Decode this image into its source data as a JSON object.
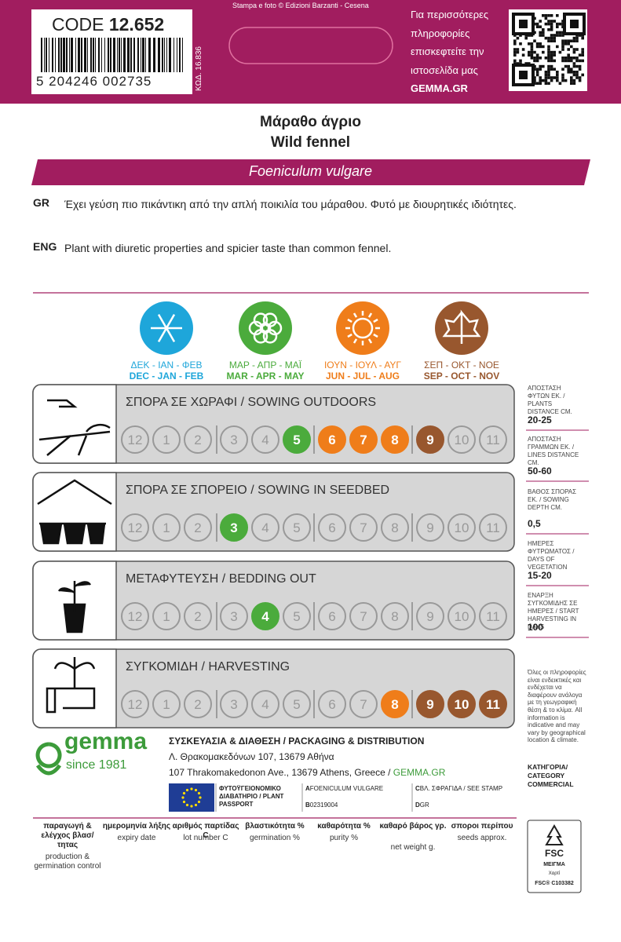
{
  "header": {
    "code_label": "CODE",
    "code": "12.652",
    "barcode": "5 204246 002735",
    "kod": "ΚΩΔ. 16.836",
    "credit": "Stampa e foto © Edizioni Barzanti - Cesena",
    "info_lines": [
      "Για περισσότερες",
      "πληροφορίες",
      "επισκεφτείτε την",
      "ιστοσελίδα μας",
      "GEMMA.GR"
    ]
  },
  "title": {
    "greek": "Μάραθο άγριο",
    "english": "Wild fennel",
    "latin": "Foeniculum vulgare"
  },
  "descriptions": [
    {
      "lang": "GR",
      "text": "Έχει γεύση πιο πικάντικη από την απλή ποικιλία του μάραθου. Φυτό με διουρητικές ιδιότητες."
    },
    {
      "lang": "ENG",
      "text": "Plant with diuretic properties and spicier taste than common fennel."
    }
  ],
  "seasons": [
    {
      "gr": "ΔΕΚ - ΙΑΝ - ΦΕΒ",
      "en": "DEC - JAN - FEB",
      "color": "#1ea6da"
    },
    {
      "gr": "ΜΑΡ - ΑΠΡ - ΜΑΪ",
      "en": "MAR - APR - MAY",
      "color": "#4bab3c"
    },
    {
      "gr": "ΙΟΥΝ - ΙΟΥΛ - ΑΥΓ",
      "en": "JUN - JUL - AUG",
      "color": "#ef7d1a"
    },
    {
      "gr": "ΣΕΠ - ΟΚΤ - ΝΟΕ",
      "en": "SEP - OCT - NOV",
      "color": "#98572e"
    }
  ],
  "months": [
    "12",
    "1",
    "2",
    "3",
    "4",
    "5",
    "6",
    "7",
    "8",
    "9",
    "10",
    "11"
  ],
  "activities": [
    {
      "title": "ΣΠΟΡΑ ΣΕ ΧΩΡΑΦΙ / SOWING OUTDOORS",
      "highlight": [
        false,
        false,
        false,
        false,
        false,
        true,
        true,
        true,
        true,
        true,
        false,
        false
      ]
    },
    {
      "title": "ΣΠΟΡΑ ΣΕ ΣΠΟΡΕΙΟ / SOWING IN SEEDBED",
      "highlight": [
        false,
        false,
        false,
        true,
        false,
        false,
        false,
        false,
        false,
        false,
        false,
        false
      ]
    },
    {
      "title": "ΜΕΤΑΦΥΤΕΥΣΗ / BEDDING OUT",
      "highlight": [
        false,
        false,
        false,
        false,
        true,
        false,
        false,
        false,
        false,
        false,
        false,
        false
      ]
    },
    {
      "title": "ΣΥΓΚΟΜΙΔΗ / HARVESTING",
      "highlight": [
        false,
        false,
        false,
        false,
        false,
        false,
        false,
        false,
        true,
        true,
        true,
        true
      ]
    }
  ],
  "sidebar": {
    "entries": [
      {
        "label": "ΑΠΟΣΤΑΣΗ ΦΥΤΩΝ ΕΚ. / PLANTS DISTANCE CM.",
        "value": "20-25"
      },
      {
        "label": "ΑΠΟΣΤΑΣΗ ΓΡΑΜΜΩΝ ΕΚ. / LINES DISTANCE CM.",
        "value": "50-60"
      },
      {
        "label": "ΒΑΘΟΣ ΣΠΟΡΑΣ ΕΚ. / SOWING DEPTH CM.",
        "value": "0,5"
      },
      {
        "label": "ΗΜΕΡΕΣ ΦΥΤΡΩΜΑΤΟΣ / DAYS OF VEGETATION",
        "value": "15-20"
      },
      {
        "label": "ΕΝΑΡΞΗ ΣΥΓΚΟΜΙΔΗΣ ΣΕ ΗΜΕΡΕΣ / START HARVESTING IN DAYS",
        "value": "100"
      }
    ],
    "note": "Όλες οι πληροφορίες είναι ενδεικτικές και ενδέχεται να διαφέρουν ανάλογα με τη γεωγραφική θέση & το κλίμα. All information is indicative and may vary by geographical location & climate.",
    "category": "ΚΑΤΗΓΟΡΙΑ/ CATEGORY COMMERCIAL"
  },
  "footer": {
    "brand": "gemma",
    "since": "since 1981",
    "packaging": "ΣΥΣΚΕΥΑΣΙΑ & ΔΙΑΘΕΣΗ / PACKAGING & DISTRIBUTION",
    "address_gr": "Λ. Θρακομακεδόνων 107, 13679 Αθήνα",
    "address_en": "107 Thrakomakedonon Ave., 13679 Athens, Greece / ",
    "website": "GEMMA.GR",
    "passport_title": "ΦΥΤΟΫΓΕΙΟΝΟΜΙΚΟ ΔΙΑΒΑΤΗΡΙΟ / PLANT PASSPORT",
    "passport_fields": [
      {
        "key": "A",
        "text": "FOENICULUM VULGARE"
      },
      {
        "key": "B",
        "text": "02319004"
      },
      {
        "key": "C",
        "text": "ΒΛ. ΣΦΡΑΓΙΔΑ / SEE STAMP"
      },
      {
        "key": "D",
        "text": "GR"
      }
    ]
  },
  "info_table": [
    {
      "gr": "παραγωγή & ελέγχος βλασ/τητας",
      "en": "production & germination control"
    },
    {
      "gr": "ημερομηνία λήξης",
      "en": "expiry date"
    },
    {
      "gr": "αριθμός παρτίδας C",
      "en": "lot number C"
    },
    {
      "gr": "βλαστικότητα %",
      "en": "germination %"
    },
    {
      "gr": "καθαρότητα %",
      "en": "purity %"
    },
    {
      "gr": "καθαρό βάρος γρ.",
      "en": "net weight g."
    },
    {
      "gr": "σποροι περίπου",
      "en": "seeds approx."
    }
  ],
  "fsc": {
    "logo": "FSC",
    "mix": "ΜΕΙΓΜΑ",
    "paper": "Χαρτί",
    "code": "FSC® C103382"
  }
}
